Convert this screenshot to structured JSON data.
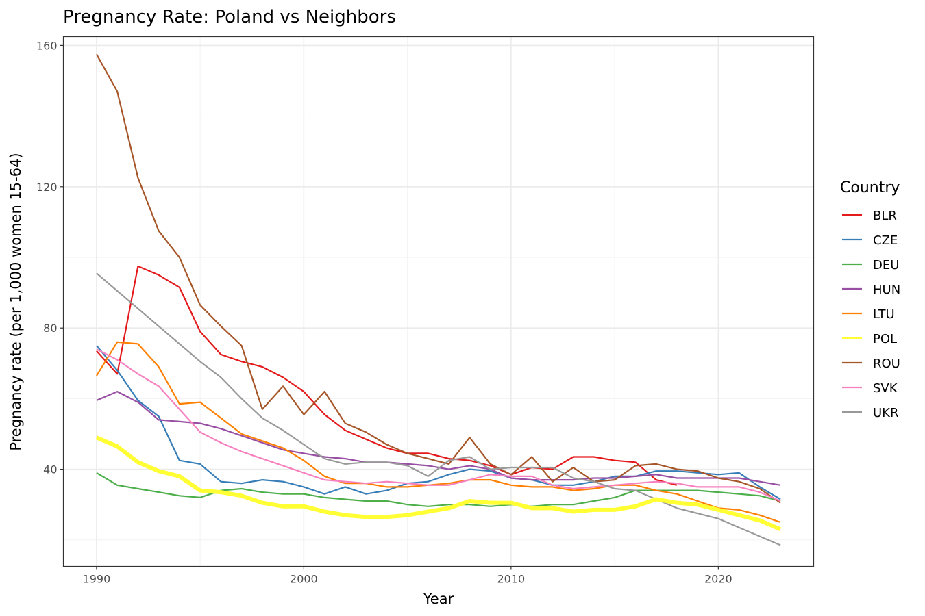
{
  "chart_data": {
    "type": "line",
    "title": "Pregnancy Rate: Poland vs Neighbors",
    "xlabel": "Year",
    "ylabel": "Pregnancy rate (per 1,000 women 15-64)",
    "xlim": [
      1988.4,
      2024.6
    ],
    "ylim": [
      12.5,
      162.5
    ],
    "x_ticks": [
      1990,
      2000,
      2010,
      2020
    ],
    "y_ticks": [
      40,
      80,
      120,
      160
    ],
    "grid": true,
    "legend": {
      "title": "Country",
      "position": "right"
    },
    "highlight_series": "POL",
    "series": [
      {
        "name": "BLR",
        "color": "#e41a1c",
        "x": [
          1990,
          1991,
          1992,
          1993,
          1994,
          1995,
          1996,
          1997,
          1998,
          1999,
          2000,
          2001,
          2002,
          2003,
          2004,
          2005,
          2006,
          2007,
          2008,
          2009,
          2010,
          2011,
          2012,
          2013,
          2014,
          2015,
          2016,
          2017,
          2018
        ],
        "values": [
          73.5,
          67,
          97.5,
          95,
          91.5,
          79,
          72.5,
          70.5,
          69,
          66,
          62,
          55.5,
          51,
          48.5,
          46,
          44.5,
          44.5,
          43,
          42.5,
          41,
          38.5,
          40.5,
          40,
          43.5,
          43.5,
          42.5,
          42,
          37,
          35.5
        ]
      },
      {
        "name": "CZE",
        "color": "#377eb8",
        "x": [
          1990,
          1991,
          1992,
          1993,
          1994,
          1995,
          1996,
          1997,
          1998,
          1999,
          2000,
          2001,
          2002,
          2003,
          2004,
          2005,
          2006,
          2007,
          2008,
          2009,
          2010,
          2011,
          2012,
          2013,
          2014,
          2015,
          2016,
          2017,
          2018,
          2019,
          2020,
          2021,
          2022,
          2023
        ],
        "values": [
          75,
          68,
          59.5,
          55,
          42.5,
          41.5,
          36.5,
          36,
          37,
          36.5,
          35,
          33,
          35,
          33,
          34,
          36,
          36.5,
          38.5,
          40,
          39.5,
          37.5,
          37,
          35.5,
          35.5,
          36.5,
          38,
          38,
          39.5,
          39.5,
          39,
          38.5,
          39,
          35,
          31.5
        ]
      },
      {
        "name": "DEU",
        "color": "#4daf4a",
        "x": [
          1990,
          1991,
          1992,
          1993,
          1994,
          1995,
          1996,
          1997,
          1998,
          1999,
          2000,
          2001,
          2002,
          2003,
          2004,
          2005,
          2006,
          2007,
          2008,
          2009,
          2010,
          2011,
          2012,
          2013,
          2014,
          2015,
          2016,
          2017,
          2018,
          2019,
          2020,
          2021,
          2022,
          2023
        ],
        "values": [
          39,
          35.5,
          34.5,
          33.5,
          32.5,
          32,
          34,
          34.5,
          33.5,
          33,
          33,
          32,
          31.5,
          31,
          31,
          30,
          29.5,
          30,
          30,
          29.5,
          30,
          29.5,
          30,
          30,
          31,
          32,
          34,
          34,
          34,
          34,
          33.5,
          33,
          32.5,
          31
        ]
      },
      {
        "name": "HUN",
        "color": "#984ea3",
        "x": [
          1990,
          1991,
          1992,
          1993,
          1994,
          1995,
          1996,
          1997,
          1998,
          1999,
          2000,
          2001,
          2002,
          2003,
          2004,
          2005,
          2006,
          2007,
          2008,
          2009,
          2010,
          2011,
          2012,
          2013,
          2014,
          2015,
          2016,
          2017,
          2018,
          2019,
          2020,
          2021,
          2022,
          2023
        ],
        "values": [
          59.5,
          62,
          59,
          54,
          53.5,
          53,
          51.5,
          49.5,
          47.5,
          45.5,
          44.5,
          43.5,
          43,
          42,
          42,
          41.5,
          41,
          40,
          41,
          40,
          37.5,
          37,
          37,
          37,
          37.5,
          37.5,
          38,
          38.5,
          37.5,
          37.5,
          37.5,
          37.5,
          36.5,
          35.5
        ]
      },
      {
        "name": "LTU",
        "color": "#ff7f00",
        "x": [
          1990,
          1991,
          1992,
          1993,
          1994,
          1995,
          1996,
          1997,
          1998,
          1999,
          2000,
          2001,
          2002,
          2003,
          2004,
          2005,
          2006,
          2007,
          2008,
          2009,
          2010,
          2011,
          2012,
          2013,
          2014,
          2015,
          2016,
          2017,
          2018,
          2019,
          2020,
          2021,
          2022,
          2023
        ],
        "values": [
          66.5,
          76,
          75.5,
          69,
          58.5,
          59,
          54.5,
          50,
          48,
          46,
          42.5,
          38,
          36,
          36,
          35,
          35,
          35.5,
          36,
          37,
          37,
          35.5,
          35,
          35,
          34,
          34.5,
          35.5,
          35.5,
          34,
          33,
          31,
          29,
          28.5,
          27,
          25
        ]
      },
      {
        "name": "POL",
        "color": "#ffff33",
        "x": [
          1990,
          1991,
          1992,
          1993,
          1994,
          1995,
          1996,
          1997,
          1998,
          1999,
          2000,
          2001,
          2002,
          2003,
          2004,
          2005,
          2006,
          2007,
          2008,
          2009,
          2010,
          2011,
          2012,
          2013,
          2014,
          2015,
          2016,
          2017,
          2018,
          2019,
          2020,
          2021,
          2022,
          2023
        ],
        "values": [
          49,
          46.5,
          42,
          39.5,
          38,
          34,
          33.5,
          32.5,
          30.5,
          29.5,
          29.5,
          28,
          27,
          26.5,
          26.5,
          27,
          28,
          29,
          31,
          30.5,
          30.5,
          29,
          29,
          28,
          28.5,
          28.5,
          29.5,
          31.5,
          30.5,
          30,
          28.5,
          27,
          25.5,
          23
        ]
      },
      {
        "name": "ROU",
        "color": "#a65628",
        "x": [
          1990,
          1991,
          1992,
          1993,
          1994,
          1995,
          1996,
          1997,
          1998,
          1999,
          2000,
          2001,
          2002,
          2003,
          2004,
          2005,
          2006,
          2007,
          2008,
          2009,
          2010,
          2011,
          2012,
          2013,
          2014,
          2015,
          2016,
          2017,
          2018,
          2019,
          2020,
          2021,
          2022,
          2023
        ],
        "values": [
          157.5,
          147,
          122.5,
          107.5,
          100,
          86.5,
          80.5,
          75,
          57,
          63.5,
          55.5,
          62,
          53,
          50.5,
          47,
          44.5,
          43,
          41.5,
          49,
          41.5,
          38.5,
          43.5,
          36.5,
          40.5,
          36.5,
          37,
          41,
          41.5,
          40,
          39.5,
          37.5,
          36.5,
          34.5,
          30.5
        ]
      },
      {
        "name": "SVK",
        "color": "#f781bf",
        "x": [
          1990,
          1991,
          1992,
          1993,
          1994,
          1995,
          1996,
          1997,
          1998,
          1999,
          2000,
          2001,
          2002,
          2003,
          2004,
          2005,
          2006,
          2007,
          2008,
          2009,
          2010,
          2011,
          2012,
          2013,
          2014,
          2015,
          2016,
          2017,
          2018,
          2019,
          2020,
          2021,
          2022,
          2023
        ],
        "values": [
          74,
          71,
          67,
          63.5,
          57,
          50.5,
          47.5,
          45,
          43,
          41,
          39,
          37,
          36.5,
          36,
          36.5,
          36,
          35.5,
          35.5,
          37,
          38.5,
          38,
          38,
          35.5,
          34.5,
          35,
          35.5,
          36,
          36.5,
          36,
          35,
          35,
          35,
          33.5,
          31
        ]
      },
      {
        "name": "UKR",
        "color": "#999999",
        "x": [
          1990,
          1991,
          1992,
          1993,
          1994,
          1995,
          1996,
          1997,
          1998,
          1999,
          2000,
          2001,
          2002,
          2003,
          2004,
          2005,
          2006,
          2007,
          2008,
          2009,
          2010,
          2011,
          2012,
          2013,
          2014,
          2015,
          2016,
          2017,
          2018,
          2019,
          2020,
          2021,
          2022,
          2023
        ],
        "values": [
          95.5,
          90.5,
          85.5,
          80.5,
          75.5,
          70.5,
          66,
          60,
          54.5,
          51,
          47,
          43,
          41.5,
          42,
          42,
          41,
          38,
          42.5,
          43.5,
          40,
          40.5,
          40.5,
          40.5,
          37.5,
          36.5,
          34.5,
          34,
          31.5,
          29,
          27.5,
          26,
          23.5,
          21,
          18.5
        ]
      }
    ]
  }
}
